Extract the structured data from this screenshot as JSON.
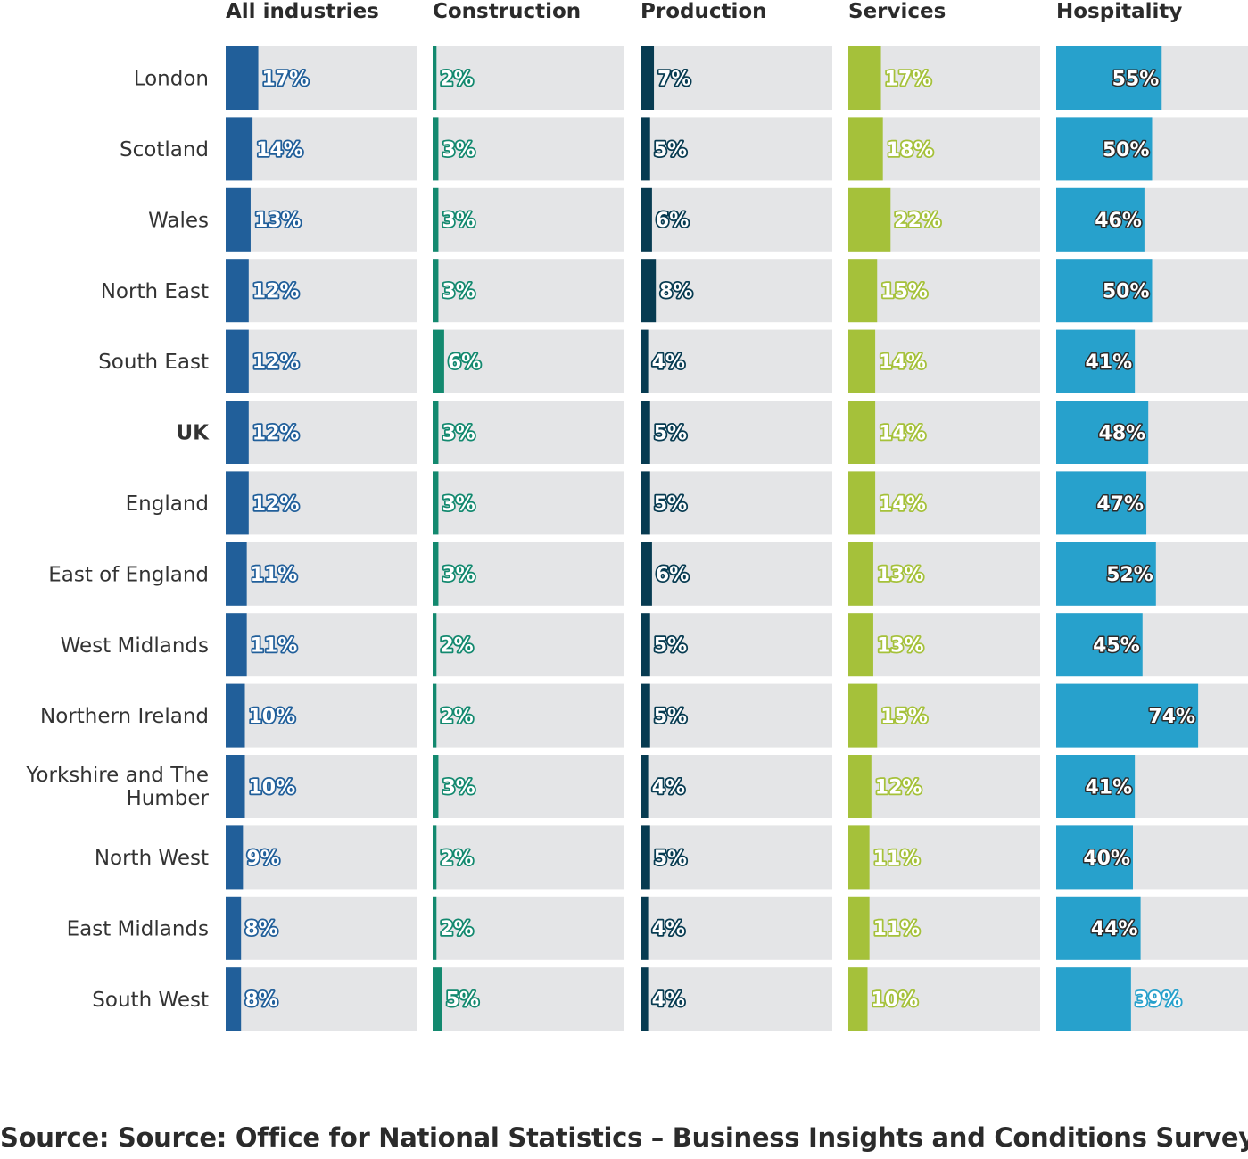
{
  "chart_data": {
    "type": "bar",
    "orientation": "horizontal",
    "panels": [
      "All industries",
      "Construction",
      "Production",
      "Services",
      "Hospitality"
    ],
    "categories": [
      "London",
      "Scotland",
      "Wales",
      "North East",
      "South East",
      "UK",
      "England",
      "East of England",
      "West Midlands",
      "Northern Ireland",
      "Yorkshire and The Humber",
      "North West",
      "East Midlands",
      "South West"
    ],
    "highlight_category": "UK",
    "series": [
      {
        "name": "All industries",
        "color": "#215f9a",
        "values": [
          17,
          14,
          13,
          12,
          12,
          12,
          12,
          11,
          11,
          10,
          10,
          9,
          8,
          8
        ]
      },
      {
        "name": "Construction",
        "color": "#13896f",
        "values": [
          2,
          3,
          3,
          3,
          6,
          3,
          3,
          3,
          2,
          2,
          3,
          2,
          2,
          5
        ]
      },
      {
        "name": "Production",
        "color": "#073b51",
        "values": [
          7,
          5,
          6,
          8,
          4,
          5,
          5,
          6,
          5,
          5,
          4,
          5,
          4,
          4
        ]
      },
      {
        "name": "Services",
        "color": "#a5c13a",
        "values": [
          17,
          18,
          22,
          15,
          14,
          14,
          14,
          13,
          13,
          15,
          12,
          11,
          11,
          10
        ]
      },
      {
        "name": "Hospitality",
        "color": "#27a1cc",
        "values": [
          55,
          50,
          46,
          50,
          41,
          48,
          47,
          52,
          45,
          74,
          41,
          40,
          44,
          39
        ]
      }
    ],
    "value_suffix": "%",
    "xlim": [
      0,
      100
    ],
    "background_track_color": "#e4e5e7",
    "grid": false,
    "legend": "none",
    "source": "Source: Source: Office for National Statistics – Business Insights and Conditions Survey"
  }
}
